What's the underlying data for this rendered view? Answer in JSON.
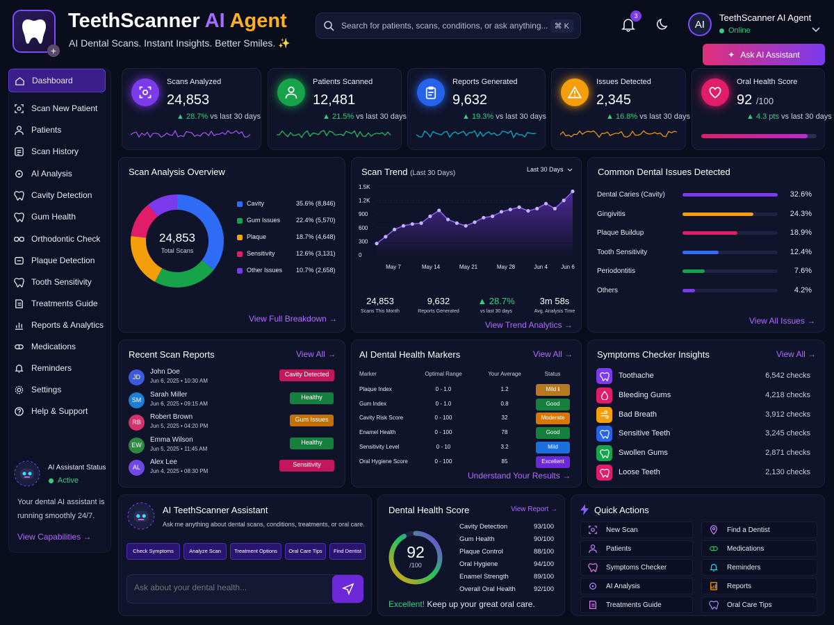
{
  "app": {
    "title_main": "TeethScanner",
    "title_ai": "AI",
    "title_agent": "Agent",
    "tagline": "AI Dental Scans. Instant Insights. Better Smiles. ✨"
  },
  "search": {
    "placeholder": "Search for patients, scans, conditions, or ask anything...",
    "shortcut": "⌘ K"
  },
  "notifications": {
    "count": "3"
  },
  "user": {
    "avatar": "AI",
    "name": "TeethScanner AI Agent",
    "status": "Online"
  },
  "ask_button": "Ask AI Assistant",
  "sidebar": {
    "items": [
      {
        "label": "Dashboard",
        "icon": "home-icon"
      },
      {
        "label": "Scan New Patient",
        "icon": "scan-icon"
      },
      {
        "label": "Patients",
        "icon": "user-icon"
      },
      {
        "label": "Scan History",
        "icon": "history-icon"
      },
      {
        "label": "AI Analysis",
        "icon": "ai-icon"
      },
      {
        "label": "Cavity Detection",
        "icon": "tooth-icon"
      },
      {
        "label": "Gum Health",
        "icon": "tooth-icon"
      },
      {
        "label": "Orthodontic Check",
        "icon": "braces-icon"
      },
      {
        "label": "Plaque Detection",
        "icon": "plaque-icon"
      },
      {
        "label": "Tooth Sensitivity",
        "icon": "tooth-icon"
      },
      {
        "label": "Treatments Guide",
        "icon": "guide-icon"
      },
      {
        "label": "Reports & Analytics",
        "icon": "chart-icon"
      },
      {
        "label": "Medications",
        "icon": "pill-icon"
      },
      {
        "label": "Reminders",
        "icon": "bell-icon"
      },
      {
        "label": "Settings",
        "icon": "gear-icon"
      },
      {
        "label": "Help & Support",
        "icon": "help-icon"
      }
    ],
    "ai_status_title": "AI Assistant Status",
    "ai_status_value": "Active",
    "ai_status_text": "Your dental AI assistant is running smoothly 24/7.",
    "view_capabilities": "View Capabilities →"
  },
  "stats": [
    {
      "label": "Scans Analyzed",
      "value": "24,853",
      "unit": "",
      "change": "28.7%",
      "suffix": "vs last 30 days",
      "color": "#7c3aed",
      "line": "#a855f7"
    },
    {
      "label": "Patients Scanned",
      "value": "12,481",
      "unit": "",
      "change": "21.5%",
      "suffix": "vs last 30 days",
      "color": "#16a34a",
      "line": "#22c55e"
    },
    {
      "label": "Reports Generated",
      "value": "9,632",
      "unit": "",
      "change": "19.3%",
      "suffix": "vs last 30 days",
      "color": "#2563eb",
      "line": "#06b6d4"
    },
    {
      "label": "Issues Detected",
      "value": "2,345",
      "unit": "",
      "change": "16.8%",
      "suffix": "vs last 30 days",
      "color": "#f59e0b",
      "line": "#f59e0b"
    },
    {
      "label": "Oral Health Score",
      "value": "92",
      "unit": "/100",
      "change": "4.3 pts",
      "suffix": "vs last 30 days",
      "color": "#e11d6a",
      "line": "#e11d6a",
      "progress": 0.92
    }
  ],
  "overview": {
    "title": "Scan Analysis Overview",
    "center_value": "24,853",
    "center_label": "Total Scans",
    "link": "View Full Breakdown →",
    "items": [
      {
        "label": "Cavity",
        "value": "35.6% (8,846)",
        "pct": 35.6,
        "color": "#2f6df6"
      },
      {
        "label": "Gum Issues",
        "value": "22.4% (5,570)",
        "pct": 22.4,
        "color": "#16a34a"
      },
      {
        "label": "Plaque",
        "value": "18.7% (4,648)",
        "pct": 18.7,
        "color": "#f59e0b"
      },
      {
        "label": "Sensitivity",
        "value": "12.6% (3,131)",
        "pct": 12.6,
        "color": "#e11d6a"
      },
      {
        "label": "Other Issues",
        "value": "10.7% (2,658)",
        "pct": 10.7,
        "color": "#7c3aed"
      }
    ]
  },
  "trend": {
    "title": "Scan Trend",
    "subtitle": "(Last 30 Days)",
    "dropdown": "Last 30 Days",
    "link": "View Trend Analytics →",
    "stats": [
      {
        "value": "24,853",
        "label": "Scans This Month"
      },
      {
        "value": "9,632",
        "label": "Reports Generated"
      },
      {
        "value": "▲ 28.7%",
        "label": "vs last 30 days"
      },
      {
        "value": "3m 58s",
        "label": "Avg. Analysis Time"
      }
    ]
  },
  "chart_data": {
    "type": "line",
    "title": "Scan Trend",
    "ylim": [
      0,
      1500
    ],
    "yticks": [
      "1.5K",
      "1.2K",
      "900",
      "600",
      "300",
      "0"
    ],
    "xticks": [
      "May 7",
      "May 14",
      "May 21",
      "May 28",
      "Jun 4",
      "Jun 6"
    ],
    "series": [
      {
        "values": [
          250,
          400,
          560,
          640,
          680,
          700,
          850,
          980,
          780,
          700,
          640,
          720,
          820,
          850,
          950,
          1000,
          1050,
          970,
          1020,
          1130,
          1020,
          1200,
          1400
        ]
      }
    ]
  },
  "issues": {
    "title": "Common Dental Issues Detected",
    "link": "View All Issues →",
    "items": [
      {
        "label": "Dental Caries (Cavity)",
        "value": "32.6%",
        "pct": 32.6,
        "color": "#7c3aed"
      },
      {
        "label": "Gingivitis",
        "value": "24.3%",
        "pct": 24.3,
        "color": "#f59e0b"
      },
      {
        "label": "Plaque Buildup",
        "value": "18.9%",
        "pct": 18.9,
        "color": "#e11d6a"
      },
      {
        "label": "Tooth Sensitivity",
        "value": "12.4%",
        "pct": 12.4,
        "color": "#2f6df6"
      },
      {
        "label": "Periodontitis",
        "value": "7.6%",
        "pct": 7.6,
        "color": "#16a34a"
      },
      {
        "label": "Others",
        "value": "4.2%",
        "pct": 4.2,
        "color": "#7c3aed"
      }
    ]
  },
  "recent": {
    "title": "Recent Scan Reports",
    "link": "View All →",
    "items": [
      {
        "initials": "JD",
        "name": "John Doe",
        "date": "Jun 6, 2025 • 10:30 AM",
        "status": "Cavity Detected",
        "avatar_color": "#3b5bdb",
        "badge_color": "#c2185b"
      },
      {
        "initials": "SM",
        "name": "Sarah Miller",
        "date": "Jun 6, 2025 • 09:15 AM",
        "status": "Healthy",
        "avatar_color": "#1c7ed6",
        "badge_color": "#15803d"
      },
      {
        "initials": "RB",
        "name": "Robert Brown",
        "date": "Jun 5, 2025 • 04:20 PM",
        "status": "Gum Issues",
        "avatar_color": "#d6336c",
        "badge_color": "#c2700a"
      },
      {
        "initials": "EW",
        "name": "Emma Wilson",
        "date": "Jun 5, 2025 • 11:45 AM",
        "status": "Healthy",
        "avatar_color": "#2b8a3e",
        "badge_color": "#15803d"
      },
      {
        "initials": "AL",
        "name": "Alex Lee",
        "date": "Jun 4, 2025 • 08:30 PM",
        "status": "Sensitivity",
        "avatar_color": "#7048e8",
        "badge_color": "#c2185b"
      }
    ]
  },
  "markers": {
    "title": "AI Dental Health Markers",
    "link": "View All →",
    "headers": [
      "Marker",
      "Optimal Range",
      "Your Average",
      "Status"
    ],
    "rows": [
      {
        "marker": "Plaque Index",
        "range": "0 - 1.0",
        "avg": "1.2",
        "status": "Mild ℹ",
        "color": "#b7791f"
      },
      {
        "marker": "Gum Index",
        "range": "0 - 1.0",
        "avg": "0.8",
        "status": "Good",
        "color": "#15803d"
      },
      {
        "marker": "Cavity Risk Score",
        "range": "0 - 100",
        "avg": "32",
        "status": "Moderate",
        "color": "#d97706"
      },
      {
        "marker": "Enamel Health",
        "range": "0 - 100",
        "avg": "78",
        "status": "Good",
        "color": "#15803d"
      },
      {
        "marker": "Sensitivity Level",
        "range": "0 - 10",
        "avg": "3.2",
        "status": "Mild",
        "color": "#1d6fe0"
      },
      {
        "marker": "Oral Hygiene Score",
        "range": "0 - 100",
        "avg": "85",
        "status": "Excellent",
        "color": "#6d28d9"
      }
    ],
    "footer": "Understand Your Results →"
  },
  "symptoms": {
    "title": "Symptoms Checker Insights",
    "link": "View All →",
    "items": [
      {
        "label": "Toothache",
        "value": "6,542 checks",
        "color": "#7c3aed"
      },
      {
        "label": "Bleeding Gums",
        "value": "4,218 checks",
        "color": "#e11d6a"
      },
      {
        "label": "Bad Breath",
        "value": "3,912 checks",
        "color": "#f59e0b"
      },
      {
        "label": "Sensitive Teeth",
        "value": "3,245 checks",
        "color": "#2563eb"
      },
      {
        "label": "Swollen Gums",
        "value": "2,871 checks",
        "color": "#16a34a"
      },
      {
        "label": "Loose Teeth",
        "value": "2,130 checks",
        "color": "#e11d6a"
      }
    ]
  },
  "assistant": {
    "title": "AI TeethScanner Assistant",
    "subtitle": "Ask me anything about dental scans, conditions, treatments, or oral care.",
    "chips": [
      "Check Symptoms",
      "Analyze Scan",
      "Treatment Options",
      "Oral Care Tips",
      "Find Dentist"
    ],
    "input_placeholder": "Ask about your dental health..."
  },
  "health_score": {
    "title": "Dental Health Score",
    "link": "View Report →",
    "score": "92",
    "max": "/100",
    "score_fraction": 0.92,
    "items": [
      {
        "label": "Cavity Detection",
        "value": "93/100"
      },
      {
        "label": "Gum Health",
        "value": "90/100"
      },
      {
        "label": "Plaque Control",
        "value": "88/100"
      },
      {
        "label": "Oral Hygiene",
        "value": "94/100"
      },
      {
        "label": "Enamel Strength",
        "value": "89/100"
      },
      {
        "label": "Overall Oral Health",
        "value": "92/100"
      }
    ],
    "footer_strong": "Excellent!",
    "footer_text": "Keep up your great oral care."
  },
  "quick": {
    "title": "Quick Actions",
    "items": [
      "New Scan",
      "Find a Dentist",
      "Patients",
      "Medications",
      "Symptoms Checker",
      "Reminders",
      "AI Analysis",
      "Reports",
      "Treatments Guide",
      "Oral Care Tips"
    ]
  }
}
